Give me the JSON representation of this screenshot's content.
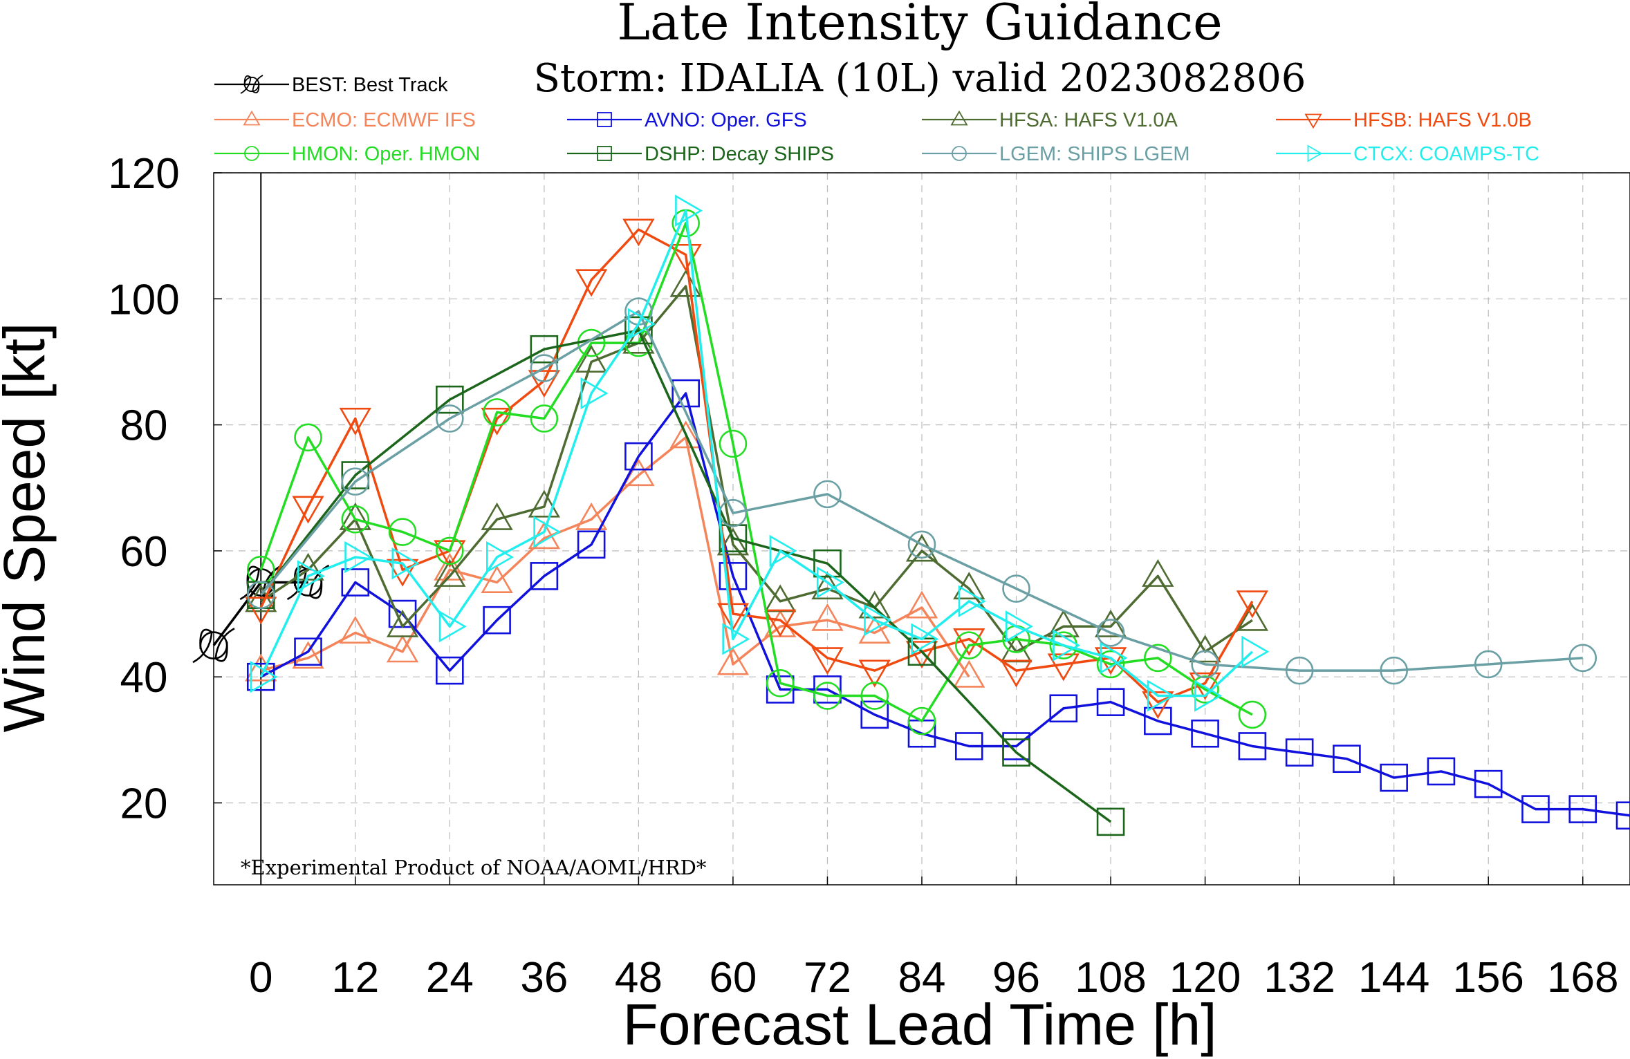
{
  "chart_data": {
    "type": "line",
    "title": "Late Intensity Guidance",
    "subtitle": "Storm: IDALIA (10L) valid 2023082806",
    "xlabel": "Forecast Lead Time [h]",
    "ylabel": "Wind Speed [kt]",
    "xlim": [
      -6,
      174
    ],
    "ylim": [
      7,
      120
    ],
    "xticks": [
      0,
      12,
      24,
      36,
      48,
      60,
      72,
      84,
      96,
      108,
      120,
      132,
      144,
      156,
      168
    ],
    "yticks": [
      20,
      40,
      60,
      80,
      100,
      120
    ],
    "xtick_labels": [
      "0",
      "12",
      "24",
      "36",
      "48",
      "60",
      "72",
      "84",
      "96",
      "108",
      "120",
      "132",
      "144",
      "156",
      "168"
    ],
    "ytick_labels": [
      "20",
      "40",
      "60",
      "80",
      "100",
      "120"
    ],
    "grid": true,
    "annotation": "*Experimental Product of NOAA/AOML/HRD*",
    "series": [
      {
        "name": "BEST: Best Track",
        "color": "#000000",
        "marker": "hurricane",
        "x": [
          -6,
          0,
          6
        ],
        "y": [
          45,
          55,
          55
        ]
      },
      {
        "name": "ECMO: ECMWF IFS",
        "color": "#f4845a",
        "marker": "triangle-up",
        "x": [
          0,
          6,
          12,
          18,
          24,
          30,
          36,
          42,
          48,
          54,
          60,
          66,
          72,
          78,
          84,
          90
        ],
        "y": [
          41,
          43,
          47,
          44,
          57,
          55,
          62,
          65,
          72,
          78,
          42,
          48,
          49,
          47,
          51,
          40
        ]
      },
      {
        "name": "AVNO: Oper. GFS",
        "color": "#1111dd",
        "marker": "square",
        "x": [
          0,
          6,
          12,
          18,
          24,
          30,
          36,
          42,
          48,
          54,
          60,
          66,
          72,
          78,
          84,
          90,
          96,
          102,
          108,
          114,
          120,
          126,
          132,
          138,
          144,
          150,
          156,
          162,
          168,
          174
        ],
        "y": [
          40,
          44,
          55,
          50,
          41,
          49,
          56,
          61,
          75,
          85,
          56,
          38,
          38,
          34,
          31,
          29,
          29,
          35,
          36,
          33,
          31,
          29,
          28,
          27,
          24,
          25,
          23,
          19,
          19,
          18
        ]
      },
      {
        "name": "HFSA: HAFS V1.0A",
        "color": "#4e6b32",
        "marker": "triangle-up",
        "x": [
          0,
          6,
          12,
          18,
          24,
          30,
          36,
          42,
          48,
          54,
          60,
          66,
          72,
          78,
          84,
          90,
          96,
          102,
          108,
          114,
          120,
          126
        ],
        "y": [
          52,
          57,
          65,
          48,
          56,
          65,
          67,
          90,
          93,
          102,
          61,
          52,
          54,
          51,
          60,
          54,
          44,
          48,
          48,
          56,
          44,
          49
        ]
      },
      {
        "name": "HFSB: HAFS V1.0B",
        "color": "#f04a10",
        "marker": "triangle-down",
        "x": [
          0,
          6,
          12,
          18,
          24,
          30,
          36,
          42,
          48,
          54,
          60,
          66,
          72,
          78,
          84,
          90,
          96,
          102,
          108,
          114,
          120,
          126
        ],
        "y": [
          51,
          67,
          81,
          57,
          60,
          81,
          87,
          103,
          111,
          107,
          50,
          49,
          43,
          41,
          44,
          46,
          41,
          42,
          43,
          36,
          39,
          52
        ]
      },
      {
        "name": "HMON: Oper. HMON",
        "color": "#22dd22",
        "marker": "circle",
        "x": [
          0,
          6,
          12,
          18,
          24,
          30,
          36,
          42,
          48,
          54,
          60,
          66,
          72,
          78,
          84,
          90,
          96,
          102,
          108,
          114,
          120,
          126
        ],
        "y": [
          57,
          78,
          65,
          63,
          60,
          82,
          81,
          93,
          93,
          112,
          77,
          39,
          37,
          37,
          33,
          45,
          46,
          45,
          42,
          43,
          38,
          34
        ]
      },
      {
        "name": "DSHP: Decay SHIPS",
        "color": "#1c661c",
        "marker": "square",
        "x": [
          0,
          12,
          24,
          36,
          48,
          60,
          72,
          84,
          96,
          108
        ],
        "y": [
          53,
          72,
          84,
          92,
          95,
          62,
          58,
          44,
          28,
          17
        ]
      },
      {
        "name": "LGEM: SHIPS LGEM",
        "color": "#6a9fa4",
        "marker": "circle",
        "x": [
          0,
          12,
          24,
          36,
          48,
          60,
          72,
          84,
          96,
          108,
          120,
          132,
          144,
          156,
          168
        ],
        "y": [
          53,
          71,
          81,
          89,
          98,
          66,
          69,
          61,
          54,
          47,
          42,
          41,
          41,
          42,
          43
        ]
      },
      {
        "name": "CTCX: COAMPS-TC",
        "color": "#22eeee",
        "marker": "triangle-right",
        "x": [
          0,
          6,
          12,
          18,
          24,
          30,
          36,
          42,
          48,
          54,
          60,
          66,
          72,
          78,
          84,
          90,
          96,
          102,
          108,
          114,
          120,
          126
        ],
        "y": [
          40,
          56,
          59,
          58,
          48,
          59,
          63,
          85,
          96,
          114,
          46,
          60,
          55,
          49,
          46,
          52,
          48,
          45,
          43,
          37,
          37,
          44
        ]
      }
    ]
  }
}
